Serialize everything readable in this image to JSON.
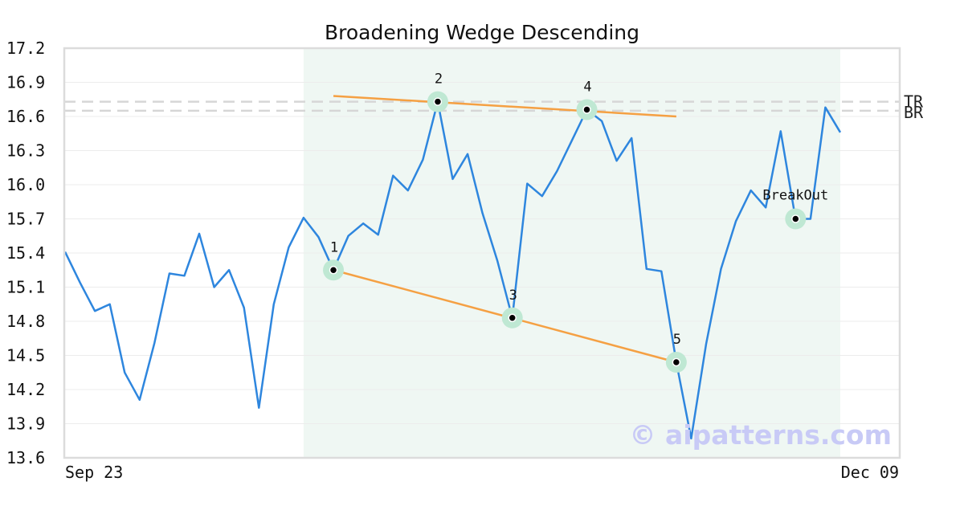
{
  "chart_data": {
    "type": "line",
    "title": "Broadening Wedge Descending",
    "xlabel": "",
    "ylabel": "",
    "ylim": [
      13.6,
      17.2
    ],
    "yticks": [
      "13.6",
      "13.9",
      "14.2",
      "14.5",
      "14.8",
      "15.1",
      "15.4",
      "15.7",
      "16.0",
      "16.3",
      "16.6",
      "16.9",
      "17.2"
    ],
    "xtick_labels": [
      "Sep 23",
      "Dec 09"
    ],
    "grid": true,
    "series": [
      {
        "color": "#2e86de",
        "values": [
          15.41,
          15.14,
          14.89,
          14.95,
          14.35,
          14.11,
          14.61,
          15.22,
          15.2,
          15.57,
          15.1,
          15.25,
          14.92,
          14.04,
          14.95,
          15.45,
          15.71,
          15.54,
          15.25,
          15.55,
          15.66,
          15.56,
          16.08,
          15.95,
          16.22,
          16.73,
          16.05,
          16.27,
          15.75,
          15.33,
          14.83,
          16.01,
          15.9,
          16.12,
          16.39,
          16.66,
          16.56,
          16.21,
          16.41,
          15.26,
          15.24,
          14.44,
          13.77,
          14.6,
          15.26,
          15.68,
          15.95,
          15.8,
          16.47,
          15.7,
          15.7,
          16.68,
          16.46
        ]
      }
    ],
    "shaded_region": {
      "from_index": 16,
      "to_index": 52,
      "color": "#eff7f3"
    },
    "reference_lines": [
      {
        "label": "TR",
        "value": 16.73,
        "color": "#d6d6d6"
      },
      {
        "label": "BR",
        "value": 16.65,
        "color": "#d6d6d6"
      }
    ],
    "trendlines": [
      {
        "color": "#f5a043",
        "from": [
          18,
          16.78
        ],
        "to": [
          41,
          16.6
        ]
      },
      {
        "color": "#f5a043",
        "from": [
          18,
          15.25
        ],
        "to": [
          41,
          14.44
        ]
      }
    ],
    "pivots": [
      {
        "label": "1",
        "index": 18,
        "value": 15.25
      },
      {
        "label": "2",
        "index": 25,
        "value": 16.73
      },
      {
        "label": "3",
        "index": 30,
        "value": 14.83
      },
      {
        "label": "4",
        "index": 35,
        "value": 16.66
      },
      {
        "label": "5",
        "index": 41,
        "value": 14.44
      },
      {
        "label": "BreakOut",
        "index": 49,
        "value": 15.7
      }
    ],
    "watermark": "© aipatterns.com"
  }
}
